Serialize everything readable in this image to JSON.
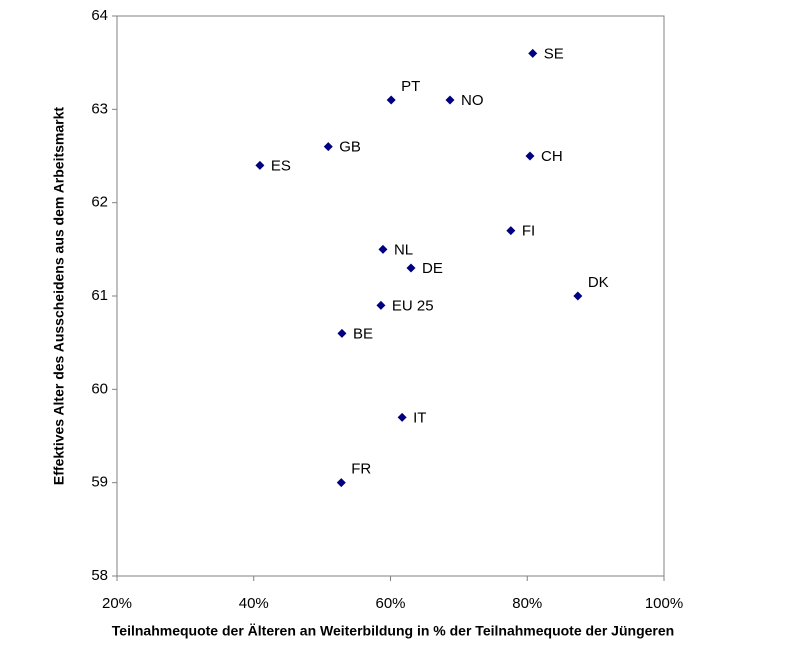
{
  "chart_data": {
    "type": "scatter",
    "x_label": "Teilnahmequote der Älteren an Weiterbildung in % der Teilnahmequote der Jüngeren",
    "y_label": "Effektives Alter des Ausscheidens aus dem Arbeitsmarkt",
    "labels": [
      "SE",
      "PT",
      "NO",
      "GB",
      "ES",
      "CH",
      "FI",
      "NL",
      "DE",
      "DK",
      "EU 25",
      "BE",
      "IT",
      "FR"
    ],
    "x": [
      80.8,
      60.1,
      68.7,
      50.9,
      40.9,
      80.4,
      77.6,
      58.9,
      63.0,
      87.4,
      58.6,
      52.9,
      61.7,
      52.8
    ],
    "y": [
      63.6,
      63.1,
      63.1,
      62.6,
      62.4,
      62.5,
      61.7,
      61.5,
      61.3,
      61.0,
      60.9,
      60.6,
      59.7,
      59.0
    ],
    "color": "#000080",
    "xlim": [
      20,
      100
    ],
    "xticks": [
      {
        "value": 20,
        "label": "20%"
      },
      {
        "value": 40,
        "label": "40%"
      },
      {
        "value": 60,
        "label": "60%"
      },
      {
        "value": 80,
        "label": "80%"
      },
      {
        "value": 100,
        "label": "100%"
      }
    ],
    "ylim": [
      58,
      64
    ],
    "yticks": [
      58,
      59,
      60,
      61,
      62,
      63,
      64
    ]
  }
}
